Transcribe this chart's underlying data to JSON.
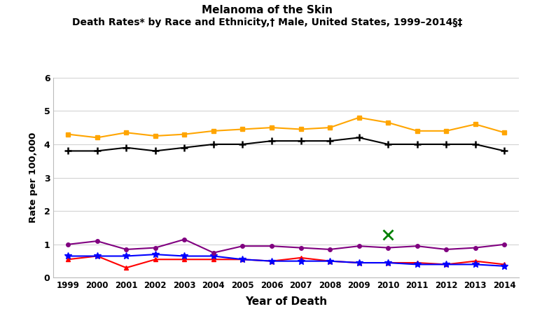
{
  "title_line1": "Melanoma of the Skin",
  "title_line2": "Death Rates* by Race and Ethnicity,† Male, United States, 1999–2014§‡",
  "xlabel": "Year of Death",
  "ylabel": "Rate per 100,000",
  "years": [
    1999,
    2000,
    2001,
    2002,
    2003,
    2004,
    2005,
    2006,
    2007,
    2008,
    2009,
    2010,
    2011,
    2012,
    2013,
    2014
  ],
  "all_races": [
    3.8,
    3.8,
    3.9,
    3.8,
    3.9,
    4.0,
    4.0,
    4.1,
    4.1,
    4.1,
    4.2,
    4.0,
    4.0,
    4.0,
    4.0,
    3.8
  ],
  "white": [
    4.3,
    4.2,
    4.35,
    4.25,
    4.3,
    4.4,
    4.45,
    4.5,
    4.45,
    4.5,
    4.8,
    4.65,
    4.4,
    4.4,
    4.6,
    4.35
  ],
  "black": [
    0.55,
    0.65,
    0.3,
    0.55,
    0.55,
    0.55,
    0.55,
    0.5,
    0.6,
    0.5,
    0.45,
    0.45,
    0.45,
    0.4,
    0.5,
    0.4
  ],
  "api": [
    0.65,
    0.65,
    0.65,
    0.7,
    0.65,
    0.65,
    0.55,
    0.5,
    0.5,
    0.5,
    0.45,
    0.45,
    0.4,
    0.4,
    0.4,
    0.35
  ],
  "aian_year": 2010,
  "aian_val": 1.3,
  "hispanic": [
    1.0,
    1.1,
    0.85,
    0.9,
    1.15,
    0.75,
    0.95,
    0.95,
    0.9,
    0.85,
    0.95,
    0.9,
    0.95,
    0.85,
    0.9,
    1.0
  ],
  "colors": {
    "all_races": "#000000",
    "white": "#FFA500",
    "black": "#FF0000",
    "api": "#0000FF",
    "aian": "#008000",
    "hispanic": "#800080"
  },
  "ylim": [
    0,
    6
  ],
  "yticks": [
    0,
    1,
    2,
    3,
    4,
    5,
    6
  ],
  "bg_color": "#ffffff",
  "grid_color": "#d3d3d3"
}
